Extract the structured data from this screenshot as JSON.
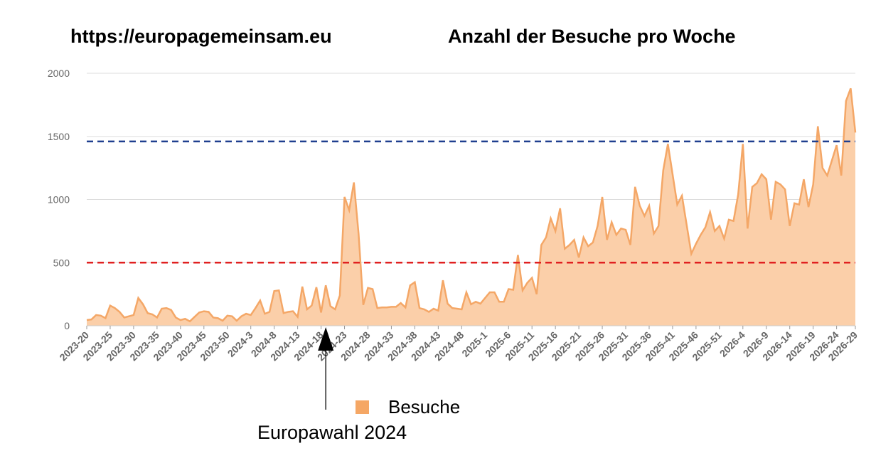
{
  "header": {
    "site": "https://europagemeinsam.eu",
    "title": "Anzahl der Besuche pro Woche"
  },
  "legend": {
    "label": "Besuche"
  },
  "annotation": {
    "label": "Europawahl 2024",
    "week_index": 51
  },
  "colors": {
    "area_fill": "#fbcfa9",
    "area_line": "#f4a767",
    "legend": "#f5a765",
    "ref_high": "#1f3f8f",
    "ref_low": "#e02020",
    "grid": "#dddddd",
    "arrow": "#000000"
  },
  "chart_data": {
    "type": "area",
    "title": "Anzahl der Besuche pro Woche",
    "ylim": [
      0,
      2000
    ],
    "yticks": [
      0,
      500,
      1000,
      1500,
      2000
    ],
    "grid": true,
    "legend_position": "bottom",
    "reference_lines": [
      {
        "value": 1460,
        "color": "#1f3f8f",
        "style": "dashed"
      },
      {
        "value": 500,
        "color": "#e02020",
        "style": "dashed"
      }
    ],
    "x_tick_labels": [
      "2023-20",
      "2023-25",
      "2023-30",
      "2023-35",
      "2023-40",
      "2023-45",
      "2023-50",
      "2024-3",
      "2024-8",
      "2024-13",
      "2024-18",
      "2024-23",
      "2024-28",
      "2024-33",
      "2024-38",
      "2024-43",
      "2024-48",
      "2025-1",
      "2025-6",
      "2025-11",
      "2025-16",
      "2025-21",
      "2025-26",
      "2025-31",
      "2025-36",
      "2025-41",
      "2025-46",
      "2025-51",
      "2026-4",
      "2026-9",
      "2026-14",
      "2026-19",
      "2026-24",
      "2026-29"
    ],
    "series": [
      {
        "name": "Besuche",
        "values": [
          45,
          50,
          85,
          80,
          60,
          160,
          140,
          110,
          65,
          75,
          85,
          220,
          170,
          100,
          90,
          65,
          135,
          140,
          125,
          65,
          45,
          55,
          35,
          70,
          105,
          115,
          110,
          65,
          60,
          40,
          80,
          75,
          40,
          75,
          95,
          85,
          140,
          200,
          95,
          110,
          275,
          280,
          100,
          110,
          115,
          70,
          310,
          130,
          160,
          305,
          105,
          320,
          155,
          130,
          240,
          1020,
          915,
          1135,
          730,
          165,
          300,
          290,
          140,
          145,
          145,
          150,
          150,
          180,
          145,
          320,
          345,
          140,
          130,
          110,
          135,
          120,
          360,
          175,
          140,
          135,
          130,
          265,
          170,
          190,
          175,
          220,
          265,
          265,
          190,
          190,
          290,
          285,
          560,
          280,
          340,
          380,
          250,
          640,
          700,
          850,
          750,
          930,
          610,
          640,
          680,
          540,
          700,
          630,
          660,
          790,
          1020,
          680,
          820,
          720,
          770,
          760,
          640,
          1100,
          950,
          870,
          950,
          730,
          790,
          1230,
          1440,
          1200,
          960,
          1030,
          800,
          570,
          650,
          720,
          780,
          900,
          750,
          790,
          690,
          840,
          830,
          1040,
          1440,
          770,
          1100,
          1130,
          1200,
          1160,
          840,
          1140,
          1120,
          1080,
          790,
          970,
          960,
          1160,
          940,
          1120,
          1580,
          1250,
          1190,
          1310,
          1430,
          1190,
          1780,
          1880,
          1530
        ]
      }
    ]
  }
}
